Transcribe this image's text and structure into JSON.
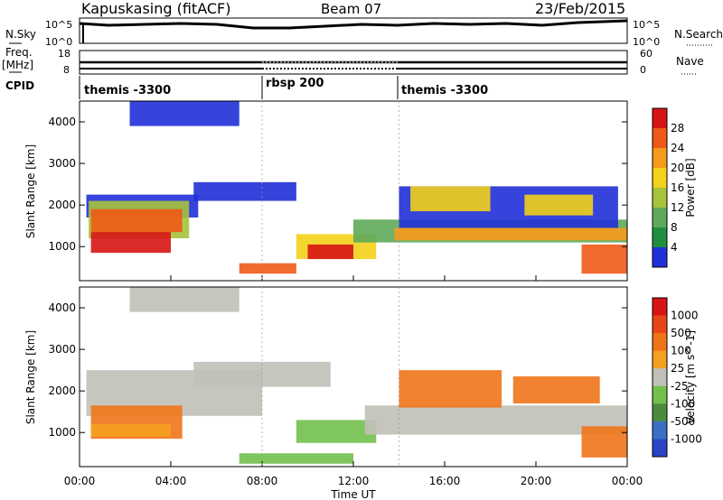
{
  "header": {
    "station": "Kapuskasing (fitACF)",
    "beam": "Beam 07",
    "date": "23/Feb/2015"
  },
  "status_panels": {
    "nsky_label": "N.Sky",
    "nsearch_label": "N.Search",
    "nsky_ticks": [
      "10^5",
      "10^0"
    ],
    "freq_label": "Freq.",
    "freq_unit": "[MHz]",
    "freq_ticks": [
      "18",
      "8"
    ],
    "nave_label": "Nave",
    "nave_ticks": [
      "60",
      "0"
    ],
    "cpid_label": "CPID",
    "cpid_segments": [
      {
        "label": "themis -3300",
        "start_hour": 0,
        "end_hour": 8
      },
      {
        "label": "rbsp 200",
        "start_hour": 8,
        "end_hour": 14
      },
      {
        "label": "themis -3300",
        "start_hour": 14,
        "end_hour": 24
      }
    ]
  },
  "x_ticks": [
    "00:00",
    "04:00",
    "08:00",
    "12:00",
    "16:00",
    "20:00",
    "00:00"
  ],
  "xlabel": "Time UT",
  "colors": {
    "power": [
      "#2030d8",
      "#1f8f3f",
      "#5faa5a",
      "#a6c33b",
      "#f2d21a",
      "#f59a1a",
      "#ef5a17",
      "#d81414"
    ],
    "velocity": [
      "#2a45c6",
      "#3a6fc5",
      "#4c8b3e",
      "#72c04c",
      "#c0c0b8",
      "#f5a020",
      "#ef7418",
      "#e84616",
      "#d81414"
    ]
  },
  "chart_data": [
    {
      "type": "heatmap",
      "name": "power",
      "ylabel": "Slant Range [km]",
      "ylim": [
        180,
        4500
      ],
      "xlim": [
        0,
        24
      ],
      "y_ticks": [
        1000,
        2000,
        3000,
        4000
      ],
      "colorbar_label": "Power [dB]",
      "colorbar_ticks": [
        "28",
        "24",
        "20",
        "16",
        "12",
        "8",
        "4"
      ],
      "regions": [
        {
          "x0": 0.3,
          "x1": 5.2,
          "y0": 1700,
          "y1": 2250,
          "level": 0
        },
        {
          "x0": 0.4,
          "x1": 4.8,
          "y0": 1200,
          "y1": 2100,
          "level": 3
        },
        {
          "x0": 0.5,
          "x1": 4.5,
          "y0": 1350,
          "y1": 1900,
          "level": 6
        },
        {
          "x0": 0.5,
          "x1": 4.0,
          "y0": 850,
          "y1": 1350,
          "level": 7
        },
        {
          "x0": 2.2,
          "x1": 7.0,
          "y0": 3900,
          "y1": 4500,
          "level": 0
        },
        {
          "x0": 5.0,
          "x1": 9.5,
          "y0": 2100,
          "y1": 2550,
          "level": 0
        },
        {
          "x0": 9.5,
          "x1": 13.0,
          "y0": 700,
          "y1": 1300,
          "level": 4
        },
        {
          "x0": 10.0,
          "x1": 12.0,
          "y0": 700,
          "y1": 1050,
          "level": 7
        },
        {
          "x0": 12.0,
          "x1": 24.0,
          "y0": 1100,
          "y1": 1650,
          "level": 2
        },
        {
          "x0": 13.8,
          "x1": 24.0,
          "y0": 1150,
          "y1": 1450,
          "level": 5
        },
        {
          "x0": 14.0,
          "x1": 23.6,
          "y0": 1450,
          "y1": 2450,
          "level": 0
        },
        {
          "x0": 14.5,
          "x1": 18.0,
          "y0": 1850,
          "y1": 2450,
          "level": 4
        },
        {
          "x0": 19.5,
          "x1": 22.5,
          "y0": 1750,
          "y1": 2250,
          "level": 4
        },
        {
          "x0": 22.0,
          "x1": 24.0,
          "y0": 350,
          "y1": 1050,
          "level": 6
        },
        {
          "x0": 7.0,
          "x1": 9.5,
          "y0": 350,
          "y1": 600,
          "level": 6
        }
      ]
    },
    {
      "type": "heatmap",
      "name": "velocity",
      "ylabel": "Slant Range [km]",
      "ylim": [
        180,
        4500
      ],
      "xlim": [
        0,
        24
      ],
      "y_ticks": [
        1000,
        2000,
        3000,
        4000
      ],
      "colorbar_label": "Velocity [m s^-1]",
      "colorbar_ticks": [
        "1000",
        "500",
        "100",
        "25",
        "-25",
        "-100",
        "-500",
        "-1000"
      ],
      "regions": [
        {
          "x0": 0.3,
          "x1": 8.0,
          "y0": 1400,
          "y1": 2500,
          "level": 4
        },
        {
          "x0": 5.0,
          "x1": 11.0,
          "y0": 2100,
          "y1": 2700,
          "level": 4
        },
        {
          "x0": 0.5,
          "x1": 4.5,
          "y0": 850,
          "y1": 1650,
          "level": 6
        },
        {
          "x0": 0.5,
          "x1": 4.0,
          "y0": 900,
          "y1": 1200,
          "level": 5
        },
        {
          "x0": 2.2,
          "x1": 7.0,
          "y0": 3900,
          "y1": 4500,
          "level": 4
        },
        {
          "x0": 9.5,
          "x1": 13.0,
          "y0": 750,
          "y1": 1300,
          "level": 3
        },
        {
          "x0": 12.5,
          "x1": 24.0,
          "y0": 950,
          "y1": 1650,
          "level": 4
        },
        {
          "x0": 14.0,
          "x1": 18.5,
          "y0": 1600,
          "y1": 2500,
          "level": 6
        },
        {
          "x0": 19.0,
          "x1": 22.8,
          "y0": 1700,
          "y1": 2350,
          "level": 6
        },
        {
          "x0": 22.0,
          "x1": 24.0,
          "y0": 400,
          "y1": 1150,
          "level": 6
        },
        {
          "x0": 7.0,
          "x1": 12.0,
          "y0": 250,
          "y1": 500,
          "level": 3
        }
      ]
    }
  ]
}
